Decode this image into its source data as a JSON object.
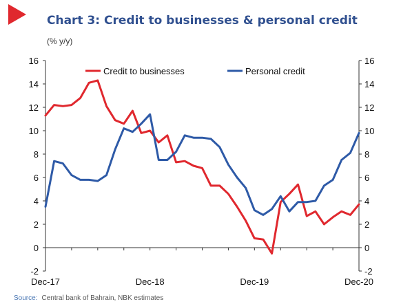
{
  "header": {
    "title": "Chart 3:  Credit to businesses & personal credit",
    "subtitle": "(% y/y)"
  },
  "source": {
    "label": "Source:",
    "text": "Central bank of Bahrain, NBK estimates"
  },
  "colors": {
    "businesses": "#e0282e",
    "personal": "#2e5aa7",
    "title": "#2f4f8f",
    "marker": "#e0282e"
  },
  "chart_data": {
    "type": "line",
    "ylim": [
      -2,
      16
    ],
    "yticks": [
      -2,
      0,
      2,
      4,
      6,
      8,
      10,
      12,
      14,
      16
    ],
    "secondary_ylim": [
      -2,
      16
    ],
    "xlim": [
      "Dec-17",
      "Dec-20"
    ],
    "xtick_labels": [
      "Dec-17",
      "Dec-18",
      "Dec-19",
      "Dec-20"
    ],
    "legend_position": "top",
    "grid": false,
    "x": [
      "Dec-17",
      "Jan-18",
      "Feb-18",
      "Mar-18",
      "Apr-18",
      "May-18",
      "Jun-18",
      "Jul-18",
      "Aug-18",
      "Sep-18",
      "Oct-18",
      "Nov-18",
      "Dec-18",
      "Jan-19",
      "Feb-19",
      "Mar-19",
      "Apr-19",
      "May-19",
      "Jun-19",
      "Jul-19",
      "Aug-19",
      "Sep-19",
      "Oct-19",
      "Nov-19",
      "Dec-19",
      "Jan-20",
      "Feb-20",
      "Mar-20",
      "Apr-20",
      "May-20",
      "Jun-20",
      "Jul-20",
      "Aug-20",
      "Sep-20",
      "Oct-20",
      "Nov-20",
      "Dec-20"
    ],
    "series": [
      {
        "name": "Credit to businesses",
        "values": [
          11.3,
          12.2,
          12.1,
          12.2,
          12.8,
          14.1,
          14.3,
          12.1,
          10.9,
          10.6,
          11.7,
          9.8,
          10.0,
          9.0,
          9.6,
          7.3,
          7.4,
          7.0,
          6.8,
          5.3,
          5.3,
          4.6,
          3.5,
          2.3,
          0.8,
          0.7,
          -0.5,
          3.9,
          4.6,
          5.4,
          2.7,
          3.1,
          2.0,
          2.6,
          3.1,
          2.8,
          3.7
        ]
      },
      {
        "name": "Personal credit",
        "values": [
          3.5,
          7.4,
          7.2,
          6.2,
          5.8,
          5.8,
          5.7,
          6.2,
          8.4,
          10.2,
          9.9,
          10.6,
          11.4,
          7.5,
          7.5,
          8.2,
          9.6,
          9.4,
          9.4,
          9.3,
          8.6,
          7.1,
          6.0,
          5.1,
          3.2,
          2.8,
          3.3,
          4.4,
          3.1,
          3.9,
          3.9,
          4.0,
          5.3,
          5.8,
          7.5,
          8.1,
          9.8
        ]
      }
    ]
  }
}
